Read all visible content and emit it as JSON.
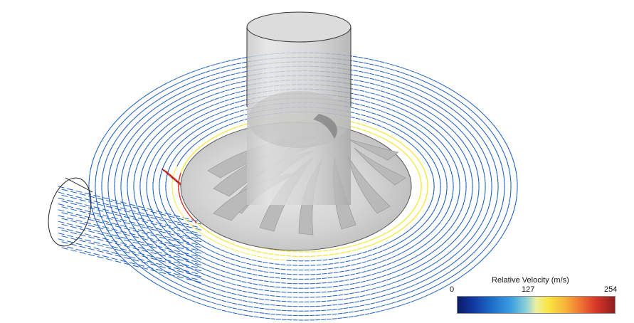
{
  "legend": {
    "title": "Relative Velocity (m/s)",
    "min": "0",
    "mid": "127",
    "max": "254",
    "range": [
      0,
      254
    ]
  },
  "scene": {
    "colors": {
      "low": "#1c5fc4",
      "mid": "#f4e94a",
      "high": "#d63a29",
      "veryhigh": "#8d1d1f",
      "glass": "#c9c9c9"
    }
  }
}
